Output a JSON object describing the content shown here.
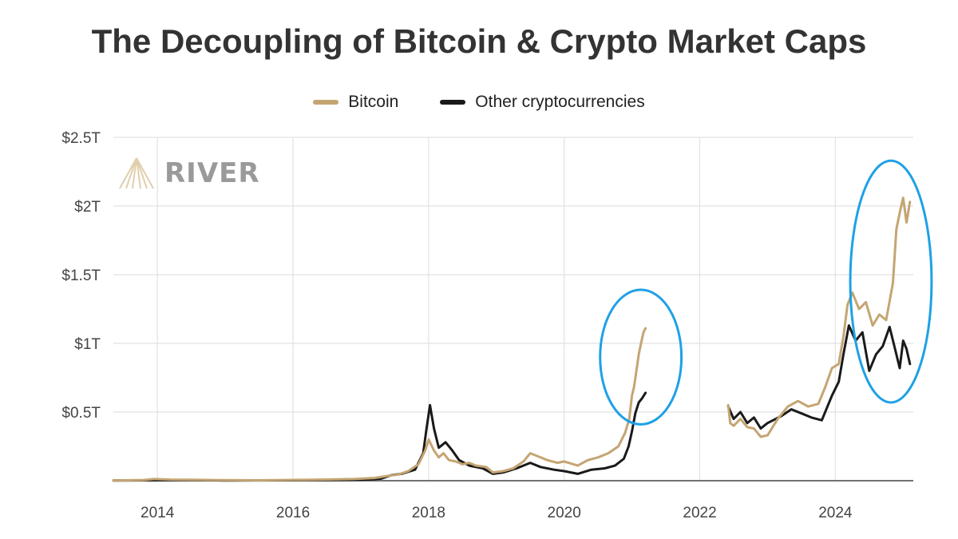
{
  "title": "The Decoupling of Bitcoin & Crypto Market Caps",
  "watermark": {
    "text": "RIVER",
    "icon": "river-logo-icon"
  },
  "colors": {
    "bitcoin": "#c4a572",
    "other": "#1a1a1a",
    "highlight": "#1ea1e6",
    "grid": "#e2e2e2"
  },
  "chart_data": {
    "type": "line",
    "xlabel": "",
    "ylabel": "",
    "xlim": [
      2013.35,
      2025.15
    ],
    "ylim": [
      0,
      2.5
    ],
    "x_ticks": [
      {
        "value": 2014,
        "label": "2014"
      },
      {
        "value": 2016,
        "label": "2016"
      },
      {
        "value": 2018,
        "label": "2018"
      },
      {
        "value": 2020,
        "label": "2020"
      },
      {
        "value": 2022,
        "label": "2022"
      },
      {
        "value": 2024,
        "label": "2024"
      }
    ],
    "y_ticks": [
      {
        "value": 0.5,
        "label": "$0.5T"
      },
      {
        "value": 1,
        "label": "$1T"
      },
      {
        "value": 1.5,
        "label": "$1.5T"
      },
      {
        "value": 2,
        "label": "$2T"
      },
      {
        "value": 2.5,
        "label": "$2.5T"
      }
    ],
    "legend_position": "top-center",
    "grid": true,
    "series": [
      {
        "name": "Bitcoin",
        "color": "#c4a572",
        "segments": [
          [
            [
              2013.35,
              0.002
            ],
            [
              2013.8,
              0.005
            ],
            [
              2013.95,
              0.012
            ],
            [
              2014.2,
              0.008
            ],
            [
              2014.5,
              0.007
            ],
            [
              2014.9,
              0.004
            ],
            [
              2015.5,
              0.003
            ],
            [
              2016.0,
              0.006
            ],
            [
              2016.5,
              0.009
            ],
            [
              2016.9,
              0.012
            ],
            [
              2017.2,
              0.02
            ],
            [
              2017.4,
              0.035
            ],
            [
              2017.55,
              0.045
            ],
            [
              2017.7,
              0.07
            ],
            [
              2017.85,
              0.12
            ],
            [
              2017.95,
              0.22
            ],
            [
              2018.0,
              0.3
            ],
            [
              2018.08,
              0.22
            ],
            [
              2018.15,
              0.17
            ],
            [
              2018.22,
              0.2
            ],
            [
              2018.3,
              0.15
            ],
            [
              2018.4,
              0.14
            ],
            [
              2018.5,
              0.12
            ],
            [
              2018.6,
              0.13
            ],
            [
              2018.7,
              0.11
            ],
            [
              2018.85,
              0.1
            ],
            [
              2018.95,
              0.06
            ],
            [
              2019.1,
              0.07
            ],
            [
              2019.25,
              0.09
            ],
            [
              2019.4,
              0.14
            ],
            [
              2019.5,
              0.2
            ],
            [
              2019.6,
              0.18
            ],
            [
              2019.75,
              0.15
            ],
            [
              2019.9,
              0.13
            ],
            [
              2020.0,
              0.14
            ],
            [
              2020.2,
              0.11
            ],
            [
              2020.35,
              0.15
            ],
            [
              2020.5,
              0.17
            ],
            [
              2020.65,
              0.2
            ],
            [
              2020.8,
              0.25
            ],
            [
              2020.9,
              0.35
            ],
            [
              2020.96,
              0.45
            ],
            [
              2021.0,
              0.62
            ],
            [
              2021.03,
              0.68
            ],
            [
              2021.06,
              0.78
            ],
            [
              2021.1,
              0.92
            ],
            [
              2021.13,
              0.99
            ],
            [
              2021.17,
              1.08
            ],
            [
              2021.2,
              1.11
            ]
          ],
          [
            [
              2022.42,
              0.55
            ],
            [
              2022.45,
              0.42
            ],
            [
              2022.5,
              0.4
            ],
            [
              2022.6,
              0.45
            ],
            [
              2022.7,
              0.39
            ],
            [
              2022.8,
              0.38
            ],
            [
              2022.9,
              0.32
            ],
            [
              2023.0,
              0.33
            ],
            [
              2023.15,
              0.45
            ],
            [
              2023.3,
              0.54
            ],
            [
              2023.45,
              0.58
            ],
            [
              2023.6,
              0.54
            ],
            [
              2023.75,
              0.56
            ],
            [
              2023.85,
              0.68
            ],
            [
              2023.95,
              0.82
            ],
            [
              2024.05,
              0.85
            ],
            [
              2024.12,
              1.05
            ],
            [
              2024.18,
              1.28
            ],
            [
              2024.25,
              1.37
            ],
            [
              2024.35,
              1.25
            ],
            [
              2024.45,
              1.3
            ],
            [
              2024.55,
              1.13
            ],
            [
              2024.65,
              1.21
            ],
            [
              2024.75,
              1.17
            ],
            [
              2024.85,
              1.44
            ],
            [
              2024.9,
              1.83
            ],
            [
              2024.95,
              1.95
            ],
            [
              2025.0,
              2.06
            ],
            [
              2025.05,
              1.88
            ],
            [
              2025.1,
              2.03
            ]
          ]
        ]
      },
      {
        "name": "Other cryptocurrencies",
        "color": "#1a1a1a",
        "segments": [
          [
            [
              2013.35,
              0.001
            ],
            [
              2014.0,
              0.003
            ],
            [
              2014.5,
              0.004
            ],
            [
              2015.0,
              0.002
            ],
            [
              2016.0,
              0.003
            ],
            [
              2016.5,
              0.004
            ],
            [
              2017.0,
              0.006
            ],
            [
              2017.3,
              0.015
            ],
            [
              2017.45,
              0.04
            ],
            [
              2017.6,
              0.05
            ],
            [
              2017.8,
              0.08
            ],
            [
              2017.92,
              0.2
            ],
            [
              2017.97,
              0.38
            ],
            [
              2018.02,
              0.55
            ],
            [
              2018.08,
              0.38
            ],
            [
              2018.15,
              0.24
            ],
            [
              2018.25,
              0.28
            ],
            [
              2018.35,
              0.22
            ],
            [
              2018.45,
              0.15
            ],
            [
              2018.6,
              0.11
            ],
            [
              2018.8,
              0.09
            ],
            [
              2018.95,
              0.05
            ],
            [
              2019.1,
              0.06
            ],
            [
              2019.3,
              0.09
            ],
            [
              2019.5,
              0.13
            ],
            [
              2019.65,
              0.1
            ],
            [
              2019.85,
              0.08
            ],
            [
              2020.0,
              0.07
            ],
            [
              2020.2,
              0.05
            ],
            [
              2020.4,
              0.08
            ],
            [
              2020.6,
              0.09
            ],
            [
              2020.75,
              0.11
            ],
            [
              2020.88,
              0.16
            ],
            [
              2020.95,
              0.25
            ],
            [
              2021.0,
              0.36
            ],
            [
              2021.05,
              0.49
            ],
            [
              2021.1,
              0.57
            ],
            [
              2021.15,
              0.6
            ],
            [
              2021.2,
              0.64
            ]
          ],
          [
            [
              2022.42,
              0.54
            ],
            [
              2022.5,
              0.45
            ],
            [
              2022.6,
              0.5
            ],
            [
              2022.7,
              0.42
            ],
            [
              2022.8,
              0.46
            ],
            [
              2022.9,
              0.38
            ],
            [
              2023.0,
              0.42
            ],
            [
              2023.2,
              0.47
            ],
            [
              2023.35,
              0.52
            ],
            [
              2023.5,
              0.49
            ],
            [
              2023.65,
              0.46
            ],
            [
              2023.8,
              0.44
            ],
            [
              2023.95,
              0.62
            ],
            [
              2024.05,
              0.72
            ],
            [
              2024.12,
              0.92
            ],
            [
              2024.2,
              1.13
            ],
            [
              2024.3,
              1.02
            ],
            [
              2024.4,
              1.08
            ],
            [
              2024.5,
              0.8
            ],
            [
              2024.6,
              0.92
            ],
            [
              2024.7,
              0.98
            ],
            [
              2024.8,
              1.12
            ],
            [
              2024.9,
              0.92
            ],
            [
              2024.95,
              0.82
            ],
            [
              2025.0,
              1.02
            ],
            [
              2025.05,
              0.96
            ],
            [
              2025.1,
              0.85
            ]
          ]
        ]
      }
    ],
    "annotations": [
      {
        "type": "ellipse",
        "color": "#1ea1e6",
        "x_center": 2021.13,
        "y_center": 0.9,
        "x_radius": 0.6,
        "y_radius": 0.49
      },
      {
        "type": "ellipse",
        "color": "#1ea1e6",
        "x_center": 2024.82,
        "y_center": 1.45,
        "x_radius": 0.6,
        "y_radius": 0.88
      }
    ]
  }
}
